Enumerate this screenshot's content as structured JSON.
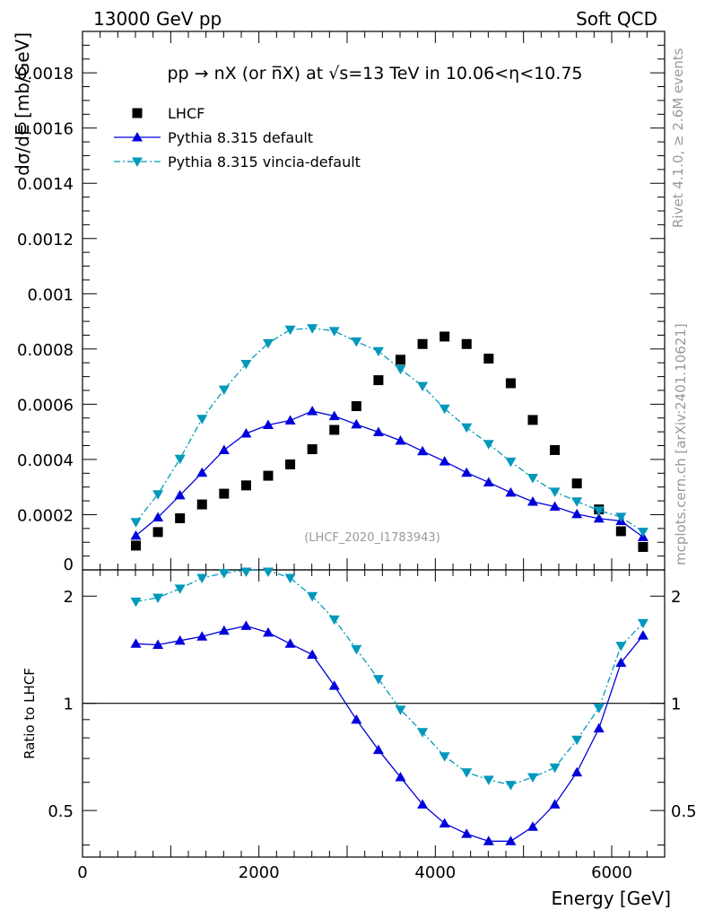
{
  "header": {
    "left": "13000 GeV pp",
    "right": "Soft QCD"
  },
  "side_labels": {
    "rivet": "Rivet 4.1.0, ≥ 2.6M events",
    "mcplots": "mcplots.cern.ch [arXiv:2401.10621]"
  },
  "colors": {
    "data": "#000000",
    "default": "#0000dd",
    "vincia": "#0099bb",
    "watermark": "#999999"
  },
  "chart_data": [
    {
      "type": "scatter",
      "title": "pp → nX (or n̅X) at √s=13 TeV in 10.06<η<10.75",
      "xlabel": "Energy [GeV]",
      "ylabel": "dσ/dE [mb/GeV]",
      "watermark": "(LHCF_2020_I1783943)",
      "xlim": [
        0,
        6600
      ],
      "ylim": [
        0,
        0.00195
      ],
      "yticks": [
        0,
        0.0002,
        0.0004,
        0.0006,
        0.0008,
        0.001,
        0.0012,
        0.0014,
        0.0016,
        0.0018
      ],
      "ytick_labels": [
        "0",
        "0.0002",
        "0.0004",
        "0.0006",
        "0.0008",
        "0.001",
        "0.0012",
        "0.0014",
        "0.0016",
        "0.0018"
      ],
      "x": [
        605,
        855,
        1105,
        1355,
        1605,
        1855,
        2105,
        2355,
        2605,
        2855,
        3105,
        3355,
        3605,
        3855,
        4105,
        4355,
        4605,
        4855,
        5105,
        5355,
        5605,
        5855,
        6105,
        6355
      ],
      "series": [
        {
          "name": "LHCF",
          "style": "data",
          "values": [
            8.8e-05,
            0.000137,
            0.000187,
            0.000237,
            0.000276,
            0.000306,
            0.000341,
            0.000382,
            0.000437,
            0.000507,
            0.000593,
            0.000687,
            0.000761,
            0.000818,
            0.000845,
            0.000818,
            0.000765,
            0.000676,
            0.000543,
            0.000434,
            0.000313,
            0.000219,
            0.00014,
            8.3e-05
          ]
        },
        {
          "name": "Pythia 8.315 default",
          "style": "default",
          "values": [
            0.000124,
            0.00019,
            0.00027,
            0.000352,
            0.000434,
            0.000494,
            0.000525,
            0.000541,
            0.000575,
            0.000557,
            0.000527,
            0.000499,
            0.000468,
            0.00043,
            0.000393,
            0.000352,
            0.000317,
            0.00028,
            0.000247,
            0.000229,
            0.000202,
            0.000186,
            0.000177,
            0.000119
          ]
        },
        {
          "name": "Pythia 8.315 vincia-default",
          "style": "vincia",
          "values": [
            0.000173,
            0.000274,
            0.000402,
            0.000547,
            0.000653,
            0.000746,
            0.000821,
            0.00087,
            0.000875,
            0.000865,
            0.000827,
            0.000792,
            0.000727,
            0.000666,
            0.000584,
            0.000516,
            0.000456,
            0.000392,
            0.000333,
            0.000283,
            0.000248,
            0.000215,
            0.000192,
            0.000138
          ]
        }
      ]
    },
    {
      "type": "line",
      "ylabel": "Ratio to LHCF",
      "xlabel": "Energy [GeV]",
      "xlim": [
        0,
        6600
      ],
      "ylim": [
        0.37,
        2.37
      ],
      "log_y": true,
      "xticks": [
        0,
        2000,
        4000,
        6000
      ],
      "xtick_labels": [
        "0",
        "2000",
        "4000",
        "6000"
      ],
      "yticks": [
        0.5,
        1,
        2
      ],
      "ytick_labels": [
        "0.5",
        "1",
        "2"
      ],
      "reference_line": 1,
      "x": [
        605,
        855,
        1105,
        1355,
        1605,
        1855,
        2105,
        2355,
        2605,
        2855,
        3105,
        3355,
        3605,
        3855,
        4105,
        4355,
        4605,
        4855,
        5105,
        5355,
        5605,
        5855,
        6105,
        6355
      ],
      "series": [
        {
          "name": "Pythia 8.315 default",
          "style": "default",
          "values": [
            1.47,
            1.46,
            1.5,
            1.54,
            1.6,
            1.65,
            1.58,
            1.47,
            1.37,
            1.12,
            0.9,
            0.74,
            0.62,
            0.52,
            0.46,
            0.43,
            0.41,
            0.41,
            0.45,
            0.52,
            0.64,
            0.85,
            1.3,
            1.55
          ]
        },
        {
          "name": "Pythia 8.315 vincia-default",
          "style": "vincia",
          "values": [
            1.93,
            1.98,
            2.1,
            2.25,
            2.32,
            2.39,
            2.36,
            2.25,
            2.0,
            1.72,
            1.42,
            1.17,
            0.96,
            0.83,
            0.71,
            0.64,
            0.61,
            0.59,
            0.62,
            0.66,
            0.79,
            0.97,
            1.45,
            1.68
          ]
        }
      ]
    }
  ]
}
